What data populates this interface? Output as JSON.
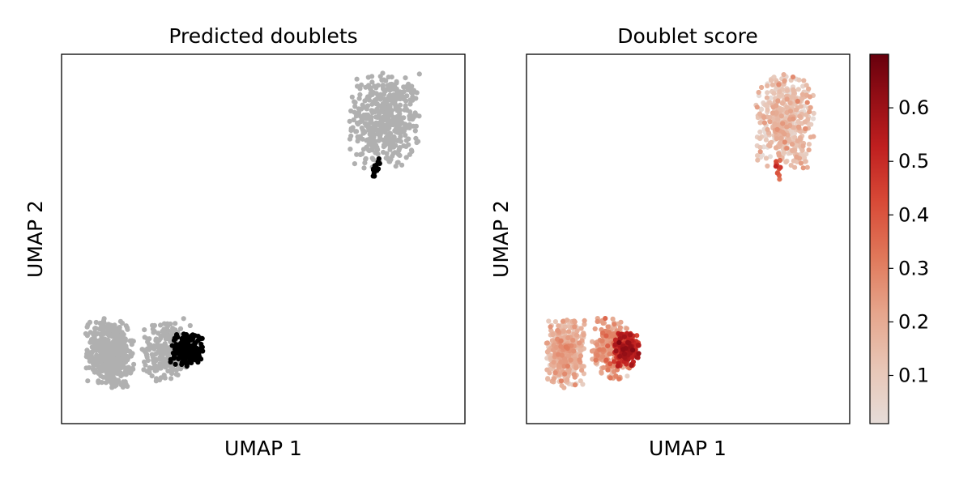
{
  "chart_data": [
    {
      "type": "scatter",
      "title": "Predicted doublets",
      "xlabel": "UMAP 1",
      "ylabel": "UMAP 2",
      "xticks": [],
      "yticks": [],
      "xlim": [
        0,
        10
      ],
      "ylim": [
        0,
        10
      ],
      "grid": false,
      "series": [
        {
          "colour": "#b0b0b0",
          "clusters": [
            {
              "center": [
                8.0,
                8.2
              ],
              "spread": [
                0.9,
                1.3
              ],
              "count": 480
            },
            {
              "center": [
                1.2,
                1.9
              ],
              "spread": [
                0.6,
                0.95
              ],
              "count": 480
            },
            {
              "center": [
                2.6,
                2.0
              ],
              "spread": [
                0.6,
                0.85
              ],
              "count": 240
            }
          ]
        },
        {
          "colour": "#000000",
          "clusters": [
            {
              "center": [
                3.1,
                2.0
              ],
              "spread": [
                0.4,
                0.45
              ],
              "count": 210
            },
            {
              "center": [
                7.8,
                6.9
              ],
              "spread": [
                0.14,
                0.3
              ],
              "count": 12
            }
          ]
        }
      ]
    },
    {
      "type": "scatter",
      "title": "Doublet score",
      "xlabel": "UMAP 1",
      "ylabel": "UMAP 2",
      "xticks": [],
      "yticks": [],
      "xlim": [
        0,
        10
      ],
      "ylim": [
        0,
        10
      ],
      "grid": false,
      "colormap": "Reds",
      "colorbar": {
        "range": [
          0.01,
          0.7
        ],
        "ticks": [
          "0.1",
          "0.2",
          "0.3",
          "0.4",
          "0.5",
          "0.6"
        ],
        "tick_values": [
          0.1,
          0.2,
          0.3,
          0.4,
          0.5,
          0.6
        ]
      },
      "clusters": [
        {
          "center": [
            8.0,
            8.2
          ],
          "spread": [
            0.9,
            1.3
          ],
          "count": 480,
          "score_mean": 0.12
        },
        {
          "center": [
            7.8,
            6.9
          ],
          "spread": [
            0.14,
            0.3
          ],
          "count": 12,
          "score_mean": 0.4
        },
        {
          "center": [
            1.2,
            1.9
          ],
          "spread": [
            0.6,
            0.95
          ],
          "count": 480,
          "score_mean": 0.15
        },
        {
          "center": [
            2.6,
            2.0
          ],
          "spread": [
            0.6,
            0.85
          ],
          "count": 240,
          "score_mean": 0.22
        },
        {
          "center": [
            3.1,
            2.0
          ],
          "spread": [
            0.4,
            0.45
          ],
          "count": 210,
          "score_mean": 0.5
        }
      ]
    }
  ]
}
